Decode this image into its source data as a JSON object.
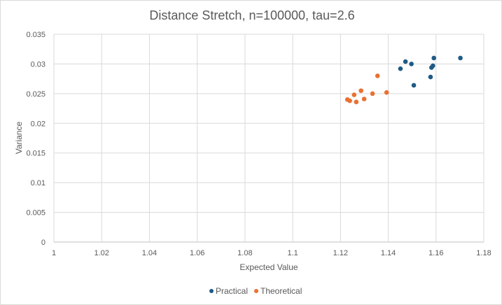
{
  "chart_data": {
    "type": "scatter",
    "title": "Distance Stretch, n=100000, tau=2.6",
    "xlabel": "Expected Value",
    "ylabel": "Variance",
    "xlim": [
      1,
      1.18
    ],
    "ylim": [
      0,
      0.035
    ],
    "x_ticks": [
      "1",
      "1.02",
      "1.04",
      "1.06",
      "1.08",
      "1.1",
      "1.12",
      "1.14",
      "1.16",
      "1.18"
    ],
    "y_ticks": [
      "0",
      "0.005",
      "0.01",
      "0.015",
      "0.02",
      "0.025",
      "0.03",
      "0.035"
    ],
    "grid": "vertical and horizontal major gridlines",
    "legend_position": "bottom",
    "series": [
      {
        "name": "Practical",
        "color": "#1f5b85",
        "points": [
          {
            "x": 1.1451,
            "y": 0.0292
          },
          {
            "x": 1.1472,
            "y": 0.0304
          },
          {
            "x": 1.1497,
            "y": 0.03
          },
          {
            "x": 1.1507,
            "y": 0.0264
          },
          {
            "x": 1.1577,
            "y": 0.0278
          },
          {
            "x": 1.1581,
            "y": 0.0294
          },
          {
            "x": 1.1587,
            "y": 0.0297
          },
          {
            "x": 1.1591,
            "y": 0.031
          },
          {
            "x": 1.1702,
            "y": 0.031
          }
        ]
      },
      {
        "name": "Theoretical",
        "color": "#e97132",
        "points": [
          {
            "x": 1.1229,
            "y": 0.024
          },
          {
            "x": 1.1239,
            "y": 0.0238
          },
          {
            "x": 1.1257,
            "y": 0.0248
          },
          {
            "x": 1.1266,
            "y": 0.0236
          },
          {
            "x": 1.1286,
            "y": 0.0255
          },
          {
            "x": 1.1299,
            "y": 0.0241
          },
          {
            "x": 1.1334,
            "y": 0.025
          },
          {
            "x": 1.1355,
            "y": 0.028
          },
          {
            "x": 1.1393,
            "y": 0.0252
          }
        ]
      }
    ]
  }
}
